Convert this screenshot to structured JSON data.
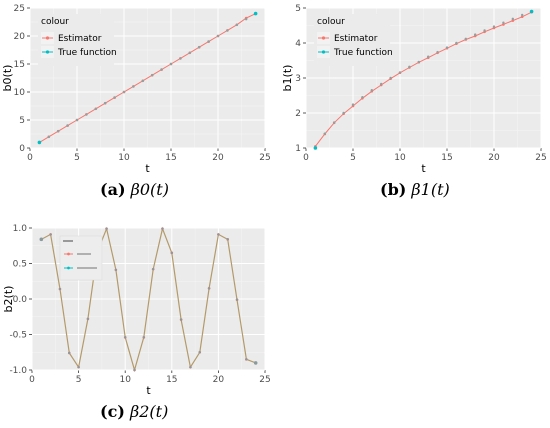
{
  "chart_data": [
    {
      "type": "line",
      "xlabel": "t",
      "ylabel": "b0(t)",
      "xlim": [
        0,
        25
      ],
      "ylim": [
        0,
        25
      ],
      "x_ticks": [
        0,
        5,
        10,
        15,
        20,
        25
      ],
      "y_ticks": [
        0,
        5,
        10,
        15,
        20,
        25
      ],
      "grid": true,
      "legend_position": "top-left",
      "legend_title": "colour",
      "series": [
        {
          "name": "Estimator",
          "color": "#F8766D",
          "x": [
            1,
            2,
            3,
            4,
            5,
            6,
            7,
            8,
            9,
            10,
            11,
            12,
            13,
            14,
            15,
            16,
            17,
            18,
            19,
            20,
            21,
            22,
            23,
            24
          ],
          "y": [
            1,
            2,
            3,
            4,
            5,
            6,
            7,
            8,
            9,
            10,
            11,
            12,
            13,
            14,
            15,
            16,
            17,
            18,
            19,
            20,
            21,
            22,
            23.2,
            24
          ]
        },
        {
          "name": "True function",
          "color": "#00BFC4",
          "x": [
            1,
            2,
            3,
            4,
            5,
            6,
            7,
            8,
            9,
            10,
            11,
            12,
            13,
            14,
            15,
            16,
            17,
            18,
            19,
            20,
            21,
            22,
            23,
            24
          ],
          "y": [
            1,
            2,
            3,
            4,
            5,
            6,
            7,
            8,
            9,
            10,
            11,
            12,
            13,
            14,
            15,
            16,
            17,
            18,
            19,
            20,
            21,
            22,
            23,
            24
          ]
        }
      ]
    },
    {
      "type": "line",
      "xlabel": "t",
      "ylabel": "b1(t)",
      "xlim": [
        0,
        25
      ],
      "ylim": [
        1,
        5
      ],
      "x_ticks": [
        0,
        5,
        10,
        15,
        20,
        25
      ],
      "y_ticks": [
        1,
        2,
        3,
        4,
        5
      ],
      "grid": true,
      "legend_position": "top-left",
      "legend_title": "colour",
      "series": [
        {
          "name": "Estimator",
          "color": "#F8766D",
          "x": [
            1,
            2,
            3,
            4,
            5,
            6,
            7,
            8,
            9,
            10,
            11,
            12,
            13,
            14,
            15,
            16,
            17,
            18,
            19,
            20,
            21,
            22,
            23,
            24
          ],
          "y": [
            1.05,
            1.4,
            1.72,
            1.98,
            2.2,
            2.42,
            2.62,
            2.8,
            2.98,
            3.15,
            3.3,
            3.45,
            3.58,
            3.72,
            3.85,
            3.98,
            4.1,
            4.2,
            4.32,
            4.43,
            4.53,
            4.64,
            4.75,
            4.88
          ]
        },
        {
          "name": "True function",
          "color": "#00BFC4",
          "x": [
            1,
            2,
            3,
            4,
            5,
            6,
            7,
            8,
            9,
            10,
            11,
            12,
            13,
            14,
            15,
            16,
            17,
            18,
            19,
            20,
            21,
            22,
            23,
            24
          ],
          "y": [
            1.0,
            1.41,
            1.73,
            2.0,
            2.24,
            2.45,
            2.65,
            2.83,
            3.0,
            3.16,
            3.32,
            3.46,
            3.61,
            3.74,
            3.87,
            4.0,
            4.12,
            4.24,
            4.36,
            4.47,
            4.58,
            4.69,
            4.8,
            4.9
          ]
        }
      ]
    },
    {
      "type": "line",
      "xlabel": "t",
      "ylabel": "b2(t)",
      "xlim": [
        0,
        25
      ],
      "ylim": [
        -1,
        1
      ],
      "x_ticks": [
        0,
        5,
        10,
        15,
        20,
        25
      ],
      "y_ticks": [
        -1.0,
        -0.5,
        0.0,
        0.5,
        1.0
      ],
      "grid": true,
      "legend_position": "top-left",
      "series": [
        {
          "name": "",
          "color": "#F8766D",
          "x": [
            1,
            2,
            3,
            4,
            5,
            6,
            7,
            8,
            9,
            10,
            11,
            12,
            13,
            14,
            15,
            16,
            17,
            18,
            19,
            20,
            21,
            22,
            23,
            24
          ],
          "y": [
            0.84,
            0.91,
            0.14,
            -0.76,
            -0.96,
            -0.28,
            0.66,
            0.99,
            0.41,
            -0.54,
            -1.0,
            -0.54,
            0.42,
            0.99,
            0.65,
            -0.29,
            -0.96,
            -0.75,
            0.15,
            0.91,
            0.84,
            -0.01,
            -0.85,
            -0.9
          ]
        },
        {
          "name": "",
          "color": "#00BFC4",
          "x": [
            1,
            2,
            3,
            4,
            5,
            6,
            7,
            8,
            9,
            10,
            11,
            12,
            13,
            14,
            15,
            16,
            17,
            18,
            19,
            20,
            21,
            22,
            23,
            24
          ],
          "y": [
            0.84,
            0.91,
            0.14,
            -0.76,
            -0.96,
            -0.28,
            0.66,
            0.99,
            0.41,
            -0.54,
            -1.0,
            -0.54,
            0.42,
            0.99,
            0.65,
            -0.29,
            -0.96,
            -0.75,
            0.15,
            0.91,
            0.84,
            -0.01,
            -0.85,
            -0.9
          ]
        }
      ]
    }
  ],
  "captions": [
    {
      "label": "(a)",
      "math": "β0(t)"
    },
    {
      "label": "(b)",
      "math": "β1(t)"
    },
    {
      "label": "(c)",
      "math": "β2(t)"
    }
  ]
}
